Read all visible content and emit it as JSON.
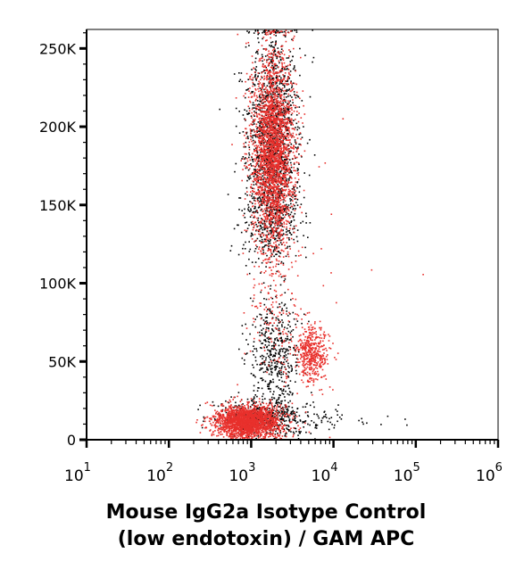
{
  "chart_data": {
    "type": "scatter",
    "title": "",
    "xlabel": "Mouse IgG2a Isotype Control\n(low endotoxin) / GAM APC",
    "xlabel_lines": [
      "Mouse IgG2a Isotype Control",
      "(low endotoxin) / GAM APC"
    ],
    "ylabel": "",
    "x_scale": "log",
    "xlim": [
      10,
      1000000
    ],
    "ylim": [
      0,
      262144
    ],
    "grid": false,
    "legend": "none",
    "x_ticks": [
      {
        "base": "10",
        "exp": "1",
        "value": 10
      },
      {
        "base": "10",
        "exp": "2",
        "value": 100
      },
      {
        "base": "10",
        "exp": "3",
        "value": 1000
      },
      {
        "base": "10",
        "exp": "4",
        "value": 10000
      },
      {
        "base": "10",
        "exp": "5",
        "value": 100000
      },
      {
        "base": "10",
        "exp": "6",
        "value": 1000000
      }
    ],
    "y_ticks": [
      {
        "label": "0",
        "value": 0
      },
      {
        "label": "50K",
        "value": 50000
      },
      {
        "label": "100K",
        "value": 100000
      },
      {
        "label": "150K",
        "value": 150000
      },
      {
        "label": "200K",
        "value": 200000
      },
      {
        "label": "250K",
        "value": 250000
      }
    ],
    "series": [
      {
        "color": "#000000",
        "populations": [
          {
            "x_center": 1800,
            "y_center": 195000,
            "x_spread_log10": 0.16,
            "y_spread": 35000,
            "count": 1400
          },
          {
            "x_center": 1700,
            "y_center": 140000,
            "x_spread_log10": 0.18,
            "y_spread": 12000,
            "count": 300
          },
          {
            "x_center": 1900,
            "y_center": 55000,
            "x_spread_log10": 0.15,
            "y_spread": 18000,
            "count": 450
          },
          {
            "x_center": 1500,
            "y_center": 15000,
            "x_spread_log10": 0.3,
            "y_spread": 6000,
            "count": 500
          },
          {
            "x_center": 8000,
            "y_center": 12000,
            "x_spread_log10": 0.4,
            "y_spread": 3000,
            "count": 40
          }
        ]
      },
      {
        "color": "#e8302c",
        "populations": [
          {
            "x_center": 1800,
            "y_center": 185000,
            "x_spread_log10": 0.13,
            "y_spread": 32000,
            "count": 2600
          },
          {
            "x_center": 900,
            "y_center": 12000,
            "x_spread_log10": 0.2,
            "y_spread": 5000,
            "count": 2000
          },
          {
            "x_center": 5500,
            "y_center": 55000,
            "x_spread_log10": 0.1,
            "y_spread": 9000,
            "count": 450
          },
          {
            "x_center": 2000,
            "y_center": 70000,
            "x_spread_log10": 0.2,
            "y_spread": 20000,
            "count": 120
          },
          {
            "x_center": 3000,
            "y_center": 110000,
            "x_spread_log10": 0.6,
            "y_spread": 60000,
            "count": 25
          }
        ]
      }
    ]
  }
}
